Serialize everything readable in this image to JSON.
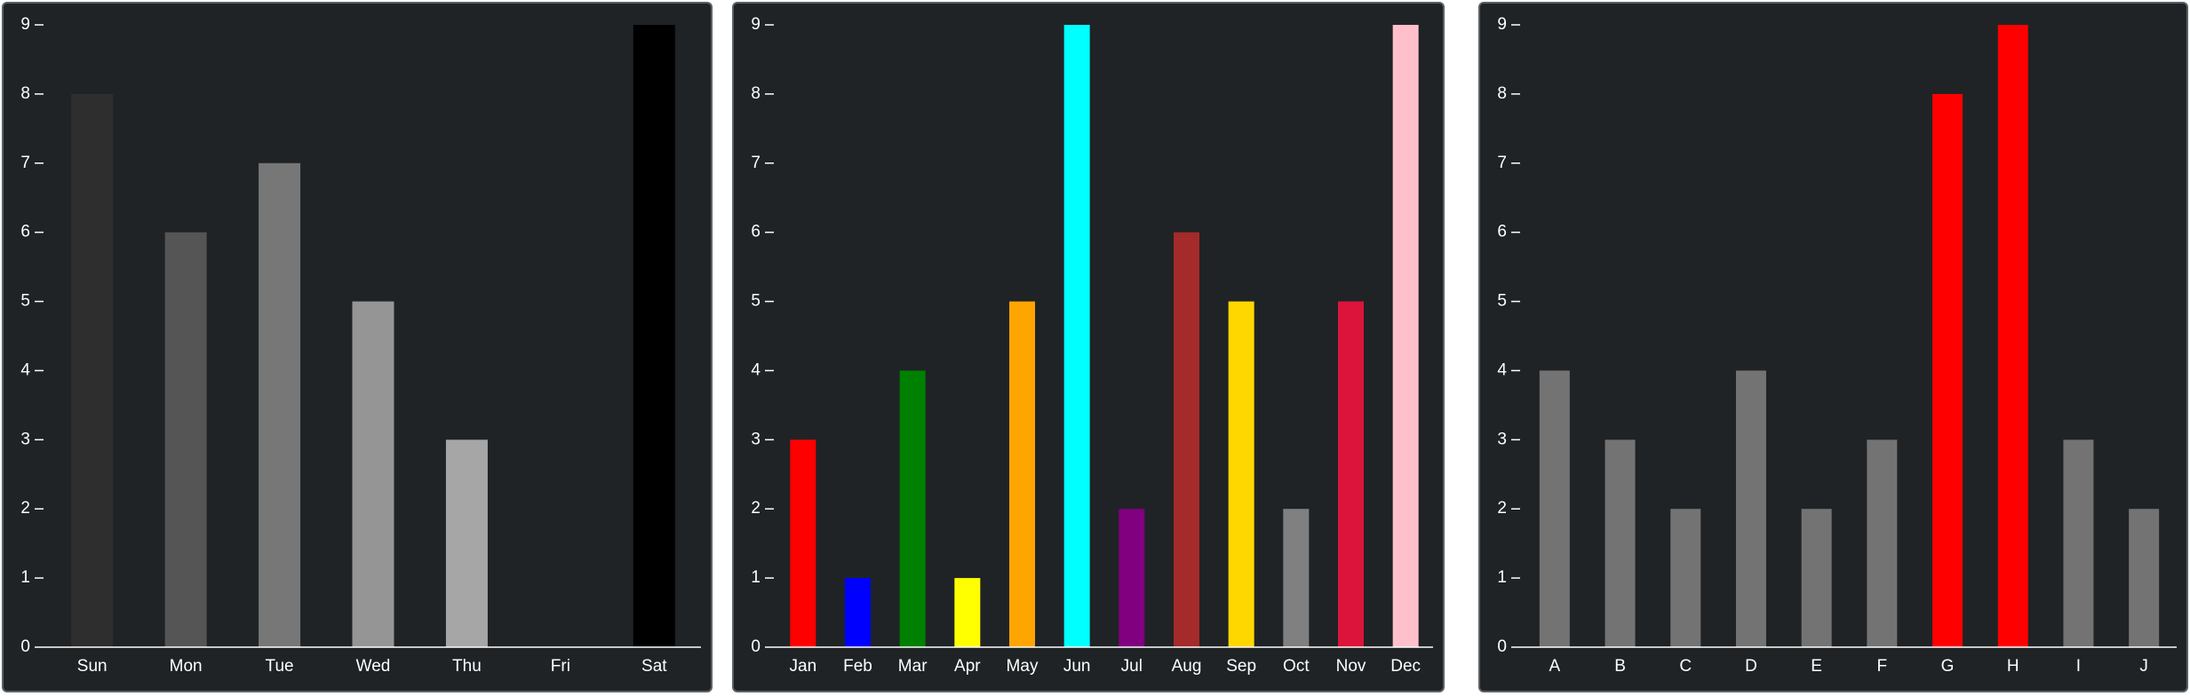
{
  "chart_data": [
    {
      "type": "bar",
      "categories": [
        "Sun",
        "Mon",
        "Tue",
        "Wed",
        "Thu",
        "Fri",
        "Sat"
      ],
      "values": [
        8,
        6,
        7,
        5,
        3,
        0,
        9
      ],
      "colors": [
        "#2e2e2e",
        "#555555",
        "#777777",
        "#959595",
        "#a6a6a6",
        "#1f2326",
        "#000000"
      ],
      "ylim": [
        0,
        9
      ],
      "yticks": [
        0,
        1,
        2,
        3,
        4,
        5,
        6,
        7,
        8,
        9
      ],
      "axis_color": "#ffffff"
    },
    {
      "type": "bar",
      "categories": [
        "Jan",
        "Feb",
        "Mar",
        "Apr",
        "May",
        "Jun",
        "Jul",
        "Aug",
        "Sep",
        "Oct",
        "Nov",
        "Dec"
      ],
      "values": [
        3,
        1,
        4,
        1,
        5,
        9,
        2,
        6,
        5,
        2,
        5,
        9
      ],
      "colors": [
        "#ff0000",
        "#0000ff",
        "#008000",
        "#ffff00",
        "#ffa500",
        "#00ffff",
        "#800080",
        "#a52a2a",
        "#ffd700",
        "#808080",
        "#dc143c",
        "#ffc0cb"
      ],
      "ylim": [
        0,
        9
      ],
      "yticks": [
        0,
        1,
        2,
        3,
        4,
        5,
        6,
        7,
        8,
        9
      ],
      "axis_color": "#ffffff"
    },
    {
      "type": "bar",
      "categories": [
        "A",
        "B",
        "C",
        "D",
        "E",
        "F",
        "G",
        "H",
        "I",
        "J"
      ],
      "values": [
        4,
        3,
        2,
        4,
        2,
        3,
        8,
        9,
        3,
        2
      ],
      "colors": [
        "#737373",
        "#737373",
        "#737373",
        "#737373",
        "#737373",
        "#737373",
        "#ff0000",
        "#ff0000",
        "#737373",
        "#737373"
      ],
      "ylim": [
        0,
        9
      ],
      "yticks": [
        0,
        1,
        2,
        3,
        4,
        5,
        6,
        7,
        8,
        9
      ],
      "axis_color": "#ffffff"
    }
  ]
}
